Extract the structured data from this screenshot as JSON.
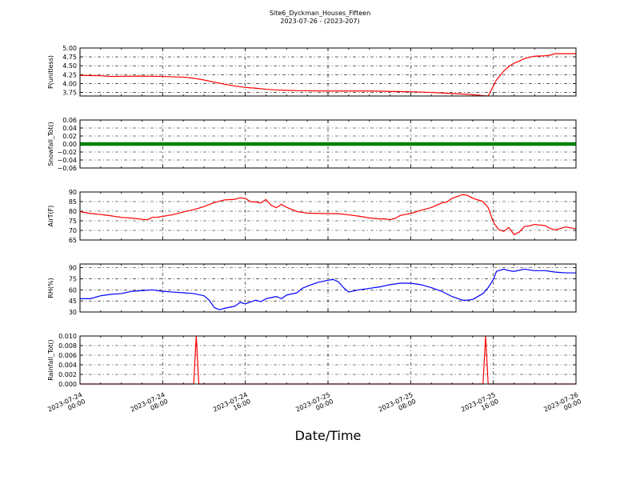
{
  "chart_data": {
    "type": "line",
    "title": "Site6_Dyckman_Houses_Fifteen",
    "subtitle": "2023-07-26 - (2023-207)",
    "xlabel": "Date/Time",
    "x_tick_labels": [
      [
        "2023-07-24",
        "00:00"
      ],
      [
        "2023-07-24",
        "08:00"
      ],
      [
        "2023-07-24",
        "16:00"
      ],
      [
        "2023-07-25",
        "00:00"
      ],
      [
        "2023-07-25",
        "08:00"
      ],
      [
        "2023-07-25",
        "16:00"
      ],
      [
        "2023-07-26",
        "00:00"
      ]
    ],
    "x_range_hours": [
      0,
      48
    ],
    "grid": true,
    "grid_style": "dash-dot",
    "colors": {
      "red": "#ff0000",
      "green": "#008000",
      "blue": "#0000ff"
    },
    "panels": [
      {
        "ylabel": "P(unitless)",
        "color": "#ff0000",
        "ylim": [
          3.65,
          5.0
        ],
        "yticks": [
          3.75,
          4.0,
          4.25,
          4.5,
          4.75,
          5.0
        ],
        "ytick_labels": [
          "3.75",
          "4.00",
          "4.25",
          "4.50",
          "4.75",
          "5.00"
        ],
        "points": [
          [
            0,
            4.23
          ],
          [
            2,
            4.22
          ],
          [
            3,
            4.2
          ],
          [
            6,
            4.21
          ],
          [
            8,
            4.2
          ],
          [
            10,
            4.18
          ],
          [
            11,
            4.15
          ],
          [
            12,
            4.1
          ],
          [
            13,
            4.04
          ],
          [
            14,
            3.98
          ],
          [
            15,
            3.93
          ],
          [
            16,
            3.89
          ],
          [
            17,
            3.87
          ],
          [
            18,
            3.84
          ],
          [
            19,
            3.82
          ],
          [
            20,
            3.81
          ],
          [
            21,
            3.8
          ],
          [
            24,
            3.79
          ],
          [
            28,
            3.79
          ],
          [
            30,
            3.78
          ],
          [
            32,
            3.77
          ],
          [
            34,
            3.75
          ],
          [
            36,
            3.72
          ],
          [
            38,
            3.69
          ],
          [
            39,
            3.66
          ],
          [
            39.5,
            3.65
          ],
          [
            40.3,
            4.1
          ],
          [
            41,
            4.35
          ],
          [
            41.5,
            4.48
          ],
          [
            42,
            4.57
          ],
          [
            42.5,
            4.63
          ],
          [
            43,
            4.7
          ],
          [
            43.5,
            4.74
          ],
          [
            44,
            4.77
          ],
          [
            45,
            4.78
          ],
          [
            45.5,
            4.8
          ],
          [
            46,
            4.84
          ],
          [
            47,
            4.84
          ],
          [
            48,
            4.84
          ]
        ]
      },
      {
        "ylabel": "Snowfall_Tot()",
        "color": "#008000",
        "ylim": [
          -0.06,
          0.06
        ],
        "yticks": [
          -0.06,
          -0.04,
          -0.02,
          0.0,
          0.02,
          0.04,
          0.06
        ],
        "ytick_labels": [
          "−0.06",
          "−0.04",
          "−0.02",
          "0.00",
          "0.02",
          "0.04",
          "0.06"
        ],
        "constant_value": 0.0,
        "marker_style": "thick"
      },
      {
        "ylabel": "AirT(F)",
        "color": "#ff0000",
        "ylim": [
          65,
          90
        ],
        "yticks": [
          65,
          70,
          75,
          80,
          85,
          90
        ],
        "ytick_labels": [
          "65",
          "70",
          "75",
          "80",
          "85",
          "90"
        ],
        "points": [
          [
            0,
            79.8
          ],
          [
            1,
            78.8
          ],
          [
            2,
            78.3
          ],
          [
            3,
            77.6
          ],
          [
            4,
            76.8
          ],
          [
            5,
            76.4
          ],
          [
            6,
            75.8
          ],
          [
            6.5,
            75.5
          ],
          [
            7,
            76.8
          ],
          [
            7.5,
            76.9
          ],
          [
            8,
            77.3
          ],
          [
            9,
            78.2
          ],
          [
            10,
            79.6
          ],
          [
            11,
            80.8
          ],
          [
            12,
            82.4
          ],
          [
            13,
            84.5
          ],
          [
            14,
            85.9
          ],
          [
            15,
            86.2
          ],
          [
            15.5,
            87.0
          ],
          [
            16,
            86.6
          ],
          [
            16.5,
            85.0
          ],
          [
            17,
            84.8
          ],
          [
            17.5,
            84.3
          ],
          [
            18,
            86.1
          ],
          [
            18.5,
            83.1
          ],
          [
            19,
            81.8
          ],
          [
            19.5,
            83.6
          ],
          [
            20,
            82.0
          ],
          [
            21,
            79.8
          ],
          [
            22,
            79.0
          ],
          [
            24,
            78.7
          ],
          [
            25,
            78.7
          ],
          [
            26,
            78.1
          ],
          [
            27,
            77.4
          ],
          [
            28,
            76.5
          ],
          [
            29,
            76.0
          ],
          [
            29.5,
            76.0
          ],
          [
            30,
            75.6
          ],
          [
            30.5,
            76.3
          ],
          [
            31,
            77.8
          ],
          [
            32,
            78.8
          ],
          [
            33,
            80.5
          ],
          [
            34,
            81.9
          ],
          [
            35,
            84.3
          ],
          [
            35.5,
            84.8
          ],
          [
            36,
            86.7
          ],
          [
            37,
            88.6
          ],
          [
            37.5,
            88.3
          ],
          [
            38,
            86.8
          ],
          [
            39,
            85.0
          ],
          [
            39.5,
            81.9
          ],
          [
            40,
            74.3
          ],
          [
            40.5,
            70.5
          ],
          [
            41,
            69.5
          ],
          [
            41.5,
            71.5
          ],
          [
            42,
            67.8
          ],
          [
            42.5,
            69.1
          ],
          [
            43,
            72.0
          ],
          [
            43.5,
            72.4
          ],
          [
            44,
            73.1
          ],
          [
            45,
            72.5
          ],
          [
            45.5,
            71.0
          ],
          [
            46,
            70.3
          ],
          [
            47,
            71.8
          ],
          [
            48,
            70.8
          ]
        ]
      },
      {
        "ylabel": "RH(%)",
        "color": "#0000ff",
        "ylim": [
          30,
          95
        ],
        "yticks": [
          30,
          45,
          60,
          75,
          90
        ],
        "ytick_labels": [
          "30",
          "45",
          "60",
          "75",
          "90"
        ],
        "points": [
          [
            0,
            48
          ],
          [
            1,
            48
          ],
          [
            2,
            52
          ],
          [
            3,
            54
          ],
          [
            4,
            55
          ],
          [
            5,
            58
          ],
          [
            6,
            59
          ],
          [
            7,
            60
          ],
          [
            8,
            58
          ],
          [
            9,
            57
          ],
          [
            10,
            56
          ],
          [
            11,
            55
          ],
          [
            12,
            52
          ],
          [
            12.5,
            46
          ],
          [
            13,
            36
          ],
          [
            13.5,
            33
          ],
          [
            14,
            35
          ],
          [
            15,
            38
          ],
          [
            15.5,
            43
          ],
          [
            16,
            41
          ],
          [
            17,
            46
          ],
          [
            17.5,
            44
          ],
          [
            18,
            48
          ],
          [
            19,
            51
          ],
          [
            19.5,
            48
          ],
          [
            20,
            53
          ],
          [
            21,
            56
          ],
          [
            21.5,
            62
          ],
          [
            22,
            65
          ],
          [
            23,
            70
          ],
          [
            24,
            73
          ],
          [
            24.5,
            74
          ],
          [
            25,
            71
          ],
          [
            25.5,
            63
          ],
          [
            26,
            57
          ],
          [
            27,
            60
          ],
          [
            28,
            62
          ],
          [
            29,
            64
          ],
          [
            30,
            67
          ],
          [
            31,
            69
          ],
          [
            32,
            69
          ],
          [
            33,
            67
          ],
          [
            34,
            63
          ],
          [
            35,
            58
          ],
          [
            36,
            51
          ],
          [
            37,
            46
          ],
          [
            37.5,
            46
          ],
          [
            38,
            47
          ],
          [
            39,
            55
          ],
          [
            39.5,
            63
          ],
          [
            40,
            74
          ],
          [
            40.3,
            85
          ],
          [
            41,
            88
          ],
          [
            41.5,
            86
          ],
          [
            42,
            85
          ],
          [
            43,
            88
          ],
          [
            44,
            86
          ],
          [
            45,
            86
          ],
          [
            46,
            84
          ],
          [
            47,
            83
          ],
          [
            48,
            83
          ]
        ]
      },
      {
        "ylabel": "Rainfall_Tot()",
        "color": "#ff0000",
        "ylim": [
          0.0,
          0.01
        ],
        "yticks": [
          0.0,
          0.002,
          0.004,
          0.006,
          0.008,
          0.01
        ],
        "ytick_labels": [
          "0.000",
          "0.002",
          "0.004",
          "0.006",
          "0.008",
          "0.010"
        ],
        "points": [
          [
            0,
            0
          ],
          [
            11,
            0
          ],
          [
            11.25,
            0.01
          ],
          [
            11.5,
            0
          ],
          [
            39,
            0
          ],
          [
            39.25,
            0.01
          ],
          [
            39.5,
            0
          ],
          [
            48,
            0
          ]
        ]
      }
    ]
  }
}
